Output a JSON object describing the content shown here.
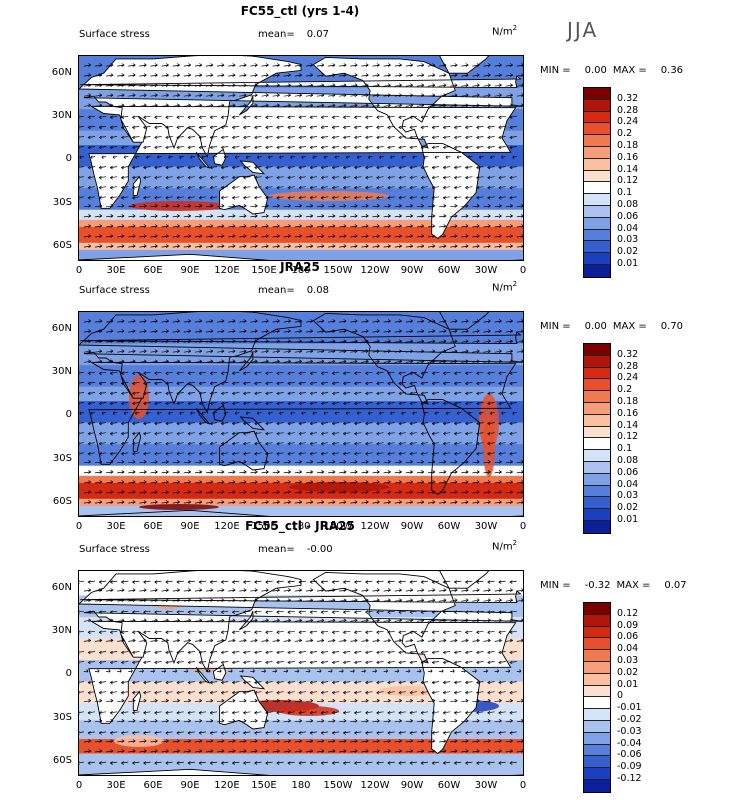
{
  "season": "JJA",
  "unit_prefix": "N/m",
  "unit_sup": "2",
  "field_label": "Surface stress",
  "mean_label": "mean=",
  "minmax": {
    "min_label": "MIN =",
    "max_label": "MAX ="
  },
  "lat_labels": [
    "60N",
    "30N",
    "0",
    "30S",
    "60S"
  ],
  "lon_labels": [
    "0",
    "30E",
    "60E",
    "90E",
    "120E",
    "150E",
    "180",
    "150W",
    "120W",
    "90W",
    "60W",
    "30W",
    "0"
  ],
  "panels": [
    {
      "title": "FC55_ctl (yrs 1-4)",
      "mean": "0.07",
      "min": "0.00",
      "max": "0.36",
      "levels": [
        "0.32",
        "0.28",
        "0.24",
        "0.2",
        "0.18",
        "0.16",
        "0.14",
        "0.12",
        "0.1",
        "0.08",
        "0.06",
        "0.04",
        "0.03",
        "0.02",
        "0.01"
      ],
      "colors": [
        "#7a0000",
        "#b0150a",
        "#d42a14",
        "#e8502c",
        "#f07a50",
        "#f59e79",
        "#f9c0a2",
        "#fce0cf",
        "#ffffff",
        "#d5e3f8",
        "#a9c3ee",
        "#7fa2e6",
        "#567fdc",
        "#3560d0",
        "#1c3fbf",
        "#0a1f99"
      ],
      "mask": "land"
    },
    {
      "title": "JRA25",
      "mean": "0.08",
      "min": "0.00",
      "max": "0.70",
      "levels": [
        "0.32",
        "0.28",
        "0.24",
        "0.2",
        "0.18",
        "0.16",
        "0.14",
        "0.12",
        "0.1",
        "0.08",
        "0.06",
        "0.04",
        "0.03",
        "0.02",
        "0.01"
      ],
      "colors": [
        "#7a0000",
        "#b0150a",
        "#d42a14",
        "#e8502c",
        "#f07a50",
        "#f59e79",
        "#f9c0a2",
        "#fce0cf",
        "#ffffff",
        "#d5e3f8",
        "#a9c3ee",
        "#7fa2e6",
        "#567fdc",
        "#3560d0",
        "#1c3fbf",
        "#0a1f99"
      ],
      "mask": "none"
    },
    {
      "title": "FC55_ctl - JRA25",
      "mean": "-0.00",
      "min": "-0.32",
      "max": "0.07",
      "levels": [
        "0.12",
        "0.09",
        "0.06",
        "0.04",
        "0.03",
        "0.02",
        "0.01",
        "0",
        "-0.01",
        "-0.02",
        "-0.03",
        "-0.04",
        "-0.06",
        "-0.09",
        "-0.12"
      ],
      "colors": [
        "#7a0000",
        "#b0150a",
        "#d42a14",
        "#e8502c",
        "#f07a50",
        "#f59e79",
        "#f9c0a2",
        "#fce0cf",
        "#ffffff",
        "#d5e3f8",
        "#a9c3ee",
        "#7fa2e6",
        "#567fdc",
        "#3560d0",
        "#1c3fbf",
        "#0a1f99"
      ],
      "mask": "land"
    }
  ]
}
